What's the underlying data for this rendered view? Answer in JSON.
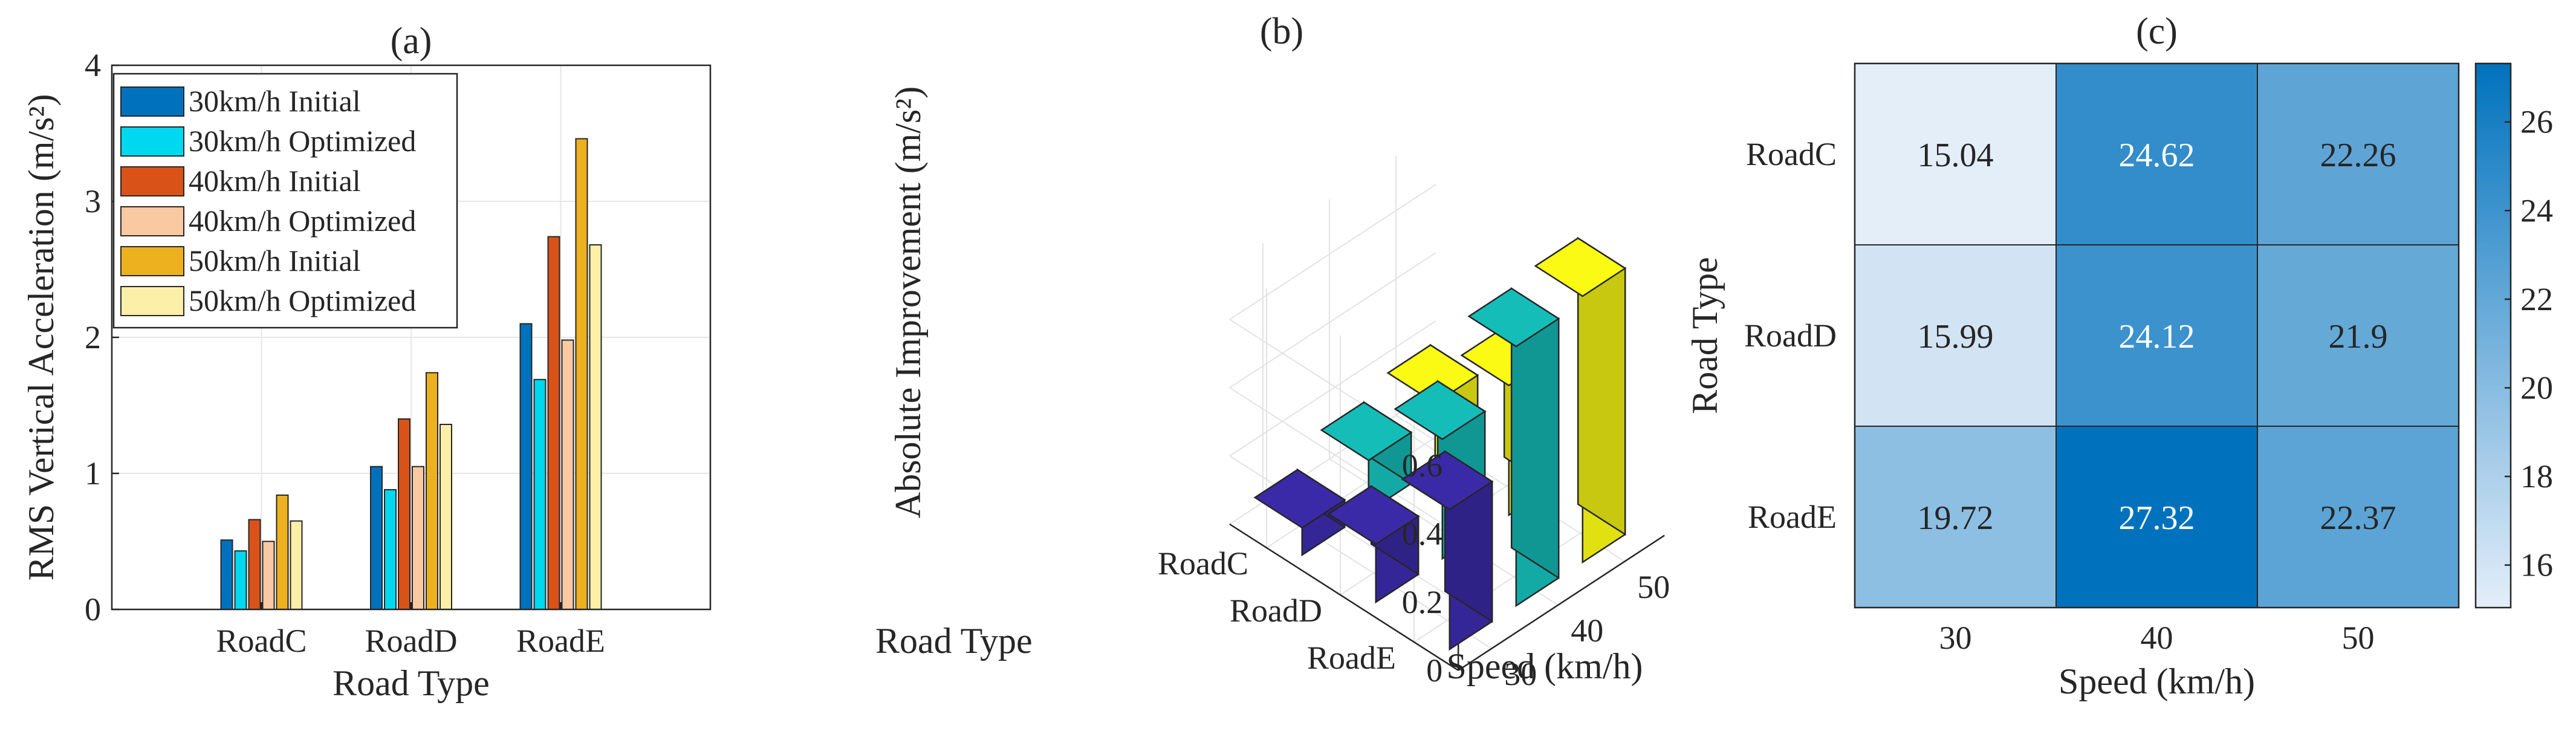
{
  "chart_data": [
    {
      "id": "a",
      "type": "bar",
      "title": "(a)",
      "xlabel": "Road Type",
      "ylabel": "RMS Vertical Acceleration (m/s²)",
      "ylim": [
        0,
        4
      ],
      "yticks": [
        "0",
        "1",
        "2",
        "3",
        "4"
      ],
      "categories": [
        "RoadC",
        "RoadD",
        "RoadE"
      ],
      "grid": true,
      "legend_position": "top-left",
      "series": [
        {
          "name": "30km/h Initial",
          "color": "#0072BD",
          "values": [
            0.51,
            1.05,
            2.1
          ]
        },
        {
          "name": "30km/h Optimized",
          "color": "#00D8F0",
          "values": [
            0.43,
            0.88,
            1.69
          ]
        },
        {
          "name": "40km/h Initial",
          "color": "#D95319",
          "values": [
            0.66,
            1.4,
            2.74
          ]
        },
        {
          "name": "40km/h Optimized",
          "color": "#F9C9A2",
          "values": [
            0.5,
            1.05,
            1.98
          ]
        },
        {
          "name": "50km/h Initial",
          "color": "#EDB120",
          "values": [
            0.84,
            1.74,
            3.46
          ]
        },
        {
          "name": "50km/h Optimized",
          "color": "#FCEFA8",
          "values": [
            0.65,
            1.36,
            2.68
          ]
        }
      ]
    },
    {
      "id": "b",
      "type": "bar3d",
      "title": "(b)",
      "xlabel": "Speed (km/h)",
      "ylabel": "Road Type",
      "zlabel": "Absolute Improvement (m/s²)",
      "x": [
        "30",
        "40",
        "50"
      ],
      "y": [
        "RoadC",
        "RoadD",
        "RoadE"
      ],
      "zlim": [
        0,
        0.7
      ],
      "zticks": [
        "0",
        "0.2",
        "0.4",
        "0.6"
      ],
      "colors": [
        "#3B2AA8",
        "#15BDB8",
        "#FAFA14"
      ],
      "values": [
        [
          0.08,
          0.15,
          0.19
        ],
        [
          0.17,
          0.35,
          0.38
        ],
        [
          0.41,
          0.76,
          0.78
        ]
      ]
    },
    {
      "id": "c",
      "type": "heatmap",
      "title": "(c)",
      "xlabel": "Speed (km/h)",
      "ylabel": "Road Type",
      "x": [
        "30",
        "40",
        "50"
      ],
      "y": [
        "RoadC",
        "RoadD",
        "RoadE"
      ],
      "values": [
        [
          15.04,
          24.62,
          22.26
        ],
        [
          15.99,
          24.12,
          21.9
        ],
        [
          19.72,
          27.32,
          22.37
        ]
      ],
      "cell_labels": [
        [
          "15.04",
          "24.62",
          "22.26"
        ],
        [
          "15.99",
          "24.12",
          "21.9"
        ],
        [
          "19.72",
          "27.32",
          "22.37"
        ]
      ],
      "colorbar": {
        "ticks": [
          "16",
          "18",
          "20",
          "22",
          "24",
          "26"
        ],
        "range": [
          15.04,
          27.32
        ]
      },
      "colors": {
        "low": "#E4EEF9",
        "high": "#0072BD"
      }
    }
  ]
}
